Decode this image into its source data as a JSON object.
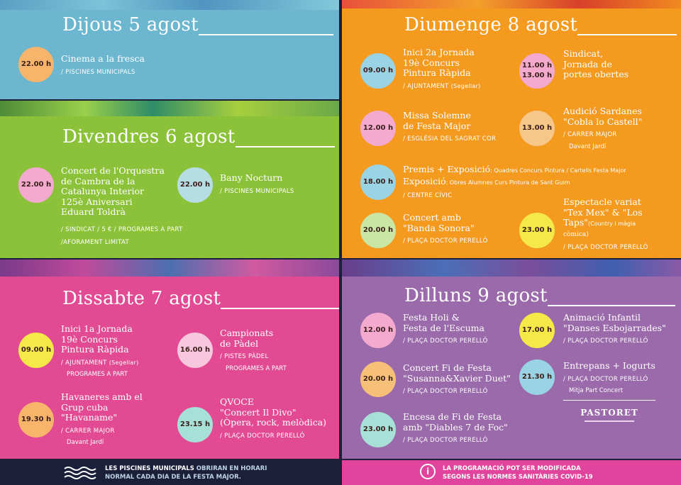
{
  "colors": {
    "blue": "#6cb6cf",
    "green": "#8cc23a",
    "orange": "#f39a1f",
    "pink": "#e24b93",
    "purple": "#9a6aaa",
    "navy": "#1b1f3a",
    "footer_pink": "#e0449c"
  },
  "panels": {
    "dijous": {
      "title": "Dijous 5 agost",
      "events": [
        {
          "time": "22.00 h",
          "title": [
            "Cinema a la fresca"
          ],
          "loc": "/ PISCINES MUNICIPALS"
        }
      ]
    },
    "divendres": {
      "title": "Divendres 6 agost",
      "events": [
        {
          "time": "22.00 h",
          "title": [
            "Concert de l'Orquestra",
            "de Cambra de la",
            "Catalunya Interior",
            "125è Aniversari",
            "Eduard Toldrà"
          ],
          "loc": "/ SINDICAT / 5 € / PROGRAMES A PART",
          "loc2": "/AFORAMENT LIMITAT"
        },
        {
          "time": "22.00 h",
          "title": [
            "Bany Nocturn"
          ],
          "loc": "/ PISCINES MUNICIPALS"
        }
      ]
    },
    "dissabte": {
      "title": "Dissabte 7 agost",
      "events": [
        {
          "time": "09.00 h",
          "title": [
            "Inici 1a Jornada",
            "19è Concurs",
            "Pintura Ràpida"
          ],
          "loc": "/ AJUNTAMENT",
          "loc_note": "(Segellar)",
          "loc2": "PROGRAMES A PART"
        },
        {
          "time": "16.00 h",
          "title": [
            "Campionats",
            "de Pàdel"
          ],
          "loc": "/ PISTES PÀDEL",
          "loc2": "PROGRAMES A PART"
        },
        {
          "time": "19.30 h",
          "title": [
            "Havaneres amb el",
            "Grup cuba",
            "\"Havaname\""
          ],
          "loc": "/ CARRER MAJOR",
          "loc2": "Davant Jardí"
        },
        {
          "time": "23.15 h",
          "title": [
            "QVOCE",
            "\"Concert Il Divo\"",
            "(Òpera, rock, melòdica)"
          ],
          "loc": "/ PLAÇA DOCTOR PERELLÓ"
        }
      ]
    },
    "diumenge": {
      "title": "Diumenge 8 agost",
      "events": [
        {
          "time": "09.00 h",
          "title": [
            "Inici 2a Jornada",
            "19è Concurs",
            "Pintura Ràpida"
          ],
          "loc": "/ AJUNTAMENT",
          "loc_note": "(Segellar)"
        },
        {
          "time": "11.00 h\n13.00 h",
          "title": [
            "Sindicat,",
            "Jornada de",
            "portes obertes"
          ]
        },
        {
          "time": "12.00 h",
          "title": [
            "Missa Solemne",
            "de Festa Major"
          ],
          "loc": "/ ESGLÉSIA DEL SAGRAT COR"
        },
        {
          "time": "13.00 h",
          "title": [
            "Audició Sardanes",
            "\"Cobla lo Castell\""
          ],
          "loc": "/ CARRER MAJOR",
          "loc2": "Davant Jardí"
        },
        {
          "time": "18.00 h",
          "title": [
            "Premis + Exposició",
            "Exposició"
          ],
          "notes": [
            ": Quadres Concurs Pintura / Cartells Festa Major",
            ": Obres Alumnes Curs Pintura de Sant Guim"
          ],
          "loc": "/ CENTRE CÍVIC"
        },
        {
          "time": "20.00 h",
          "title": [
            "Concert amb",
            "\"Banda Sonora\""
          ],
          "loc": "/ PLAÇA DOCTOR PERELLÓ"
        },
        {
          "time": "23.00 h",
          "title": [
            "Espectacle variat",
            "\"Tex Mex\" & \"Los",
            "Taps\"",
            "còmica)"
          ],
          "title_note": "(Country i màgia",
          "loc": "/ PLAÇA DOCTOR PERELLÓ"
        }
      ]
    },
    "dilluns": {
      "title": "Dilluns 9 agost",
      "events": [
        {
          "time": "12.00 h",
          "title": [
            "Festa Holi &",
            "Festa de l'Escuma"
          ],
          "loc": "/ PLAÇA DOCTOR PERELLÓ"
        },
        {
          "time": "17.00 h",
          "title": [
            "Animació Infantil",
            "\"Danses Esbojarrades\""
          ],
          "loc": "/ PLAÇA DOCTOR PERELLÓ"
        },
        {
          "time": "20.00 h",
          "title": [
            "Concert Fi de Festa",
            "\"Susanna&Xavier Duet\""
          ],
          "loc": "/ PLAÇA DOCTOR PERELLÓ"
        },
        {
          "time": "21.30 h",
          "title": [
            "Entrepans + Iogurts"
          ],
          "loc": "/ PLAÇA DOCTOR PERELLÓ",
          "loc2": "Mitja Part Concert"
        },
        {
          "time": "23.00 h",
          "title": [
            "Encesa de Fi de Festa",
            "amb \"Diables 7 de Foc\""
          ],
          "loc": "/ PLAÇA DOCTOR PERELLÓ"
        }
      ],
      "logo": "PASTORET"
    }
  },
  "footer": {
    "left_bold": "LES PISCINES MUNICIPALS",
    "left_rest": " OBRIRAN EN HORARI",
    "left_line2": "NORMAL CADA DIA DE LA FESTA MAJOR.",
    "right_line1": "LA PROGRAMACIÓ POT SER MODIFICADA",
    "right_line2": "SEGONS LES NORMES SANITÀRIES COVID-19",
    "info_glyph": "i"
  }
}
